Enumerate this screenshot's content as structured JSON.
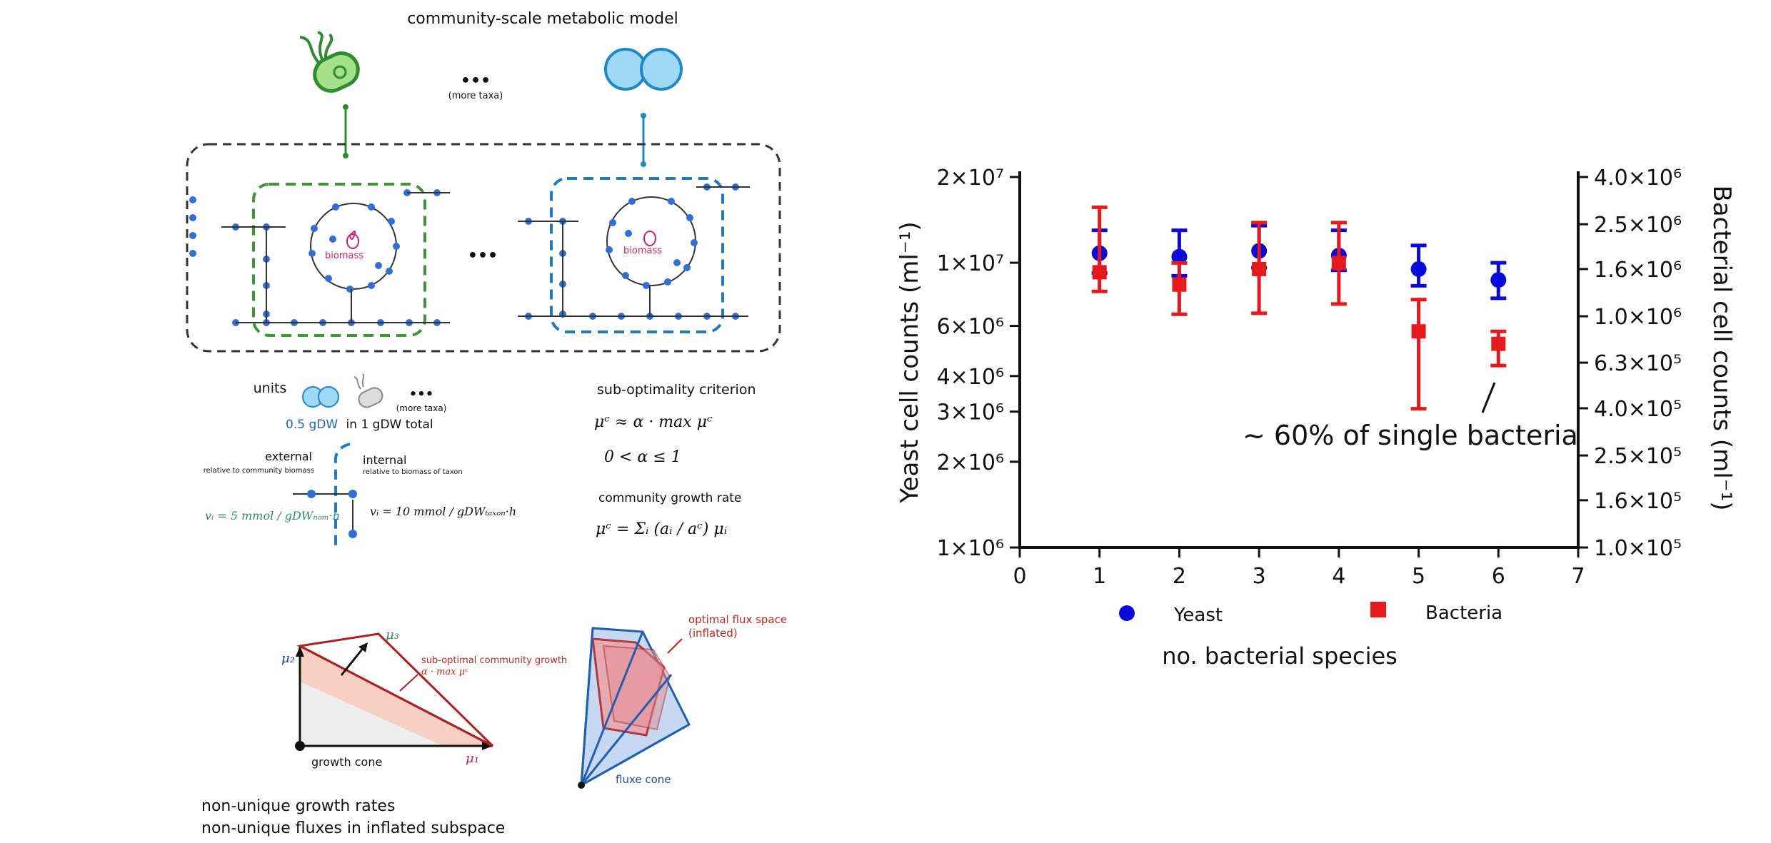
{
  "diagram": {
    "title": "community-scale metabolic model",
    "more_taxa_top": "(more taxa)",
    "ellipsis": "•••",
    "biomass_label": "biomass",
    "units_label": "units",
    "more_taxa_units": "(more taxa)",
    "gdw_value": "0.5 gDW",
    "gdw_rest": "in 1 gDW total",
    "external_label": "external",
    "external_sub": "relative to community biomass",
    "internal_label": "internal",
    "internal_sub": "relative to biomass of taxon",
    "eq_external": "vᵢ = 5 mmol / gDWₙₒₘ·h",
    "eq_internal": "vᵢ = 10 mmol / gDWₜₐₓₒₙ·h",
    "suboptimality_title": "sub-optimality criterion",
    "eq_subopt": "μᶜ ≈ α · max μᶜ",
    "eq_alpha": "0 < α ≤ 1",
    "growth_rate_title": "community growth rate",
    "eq_growth": "μᶜ = Σᵢ (aᵢ / aᶜ) μᵢ",
    "mu1": "μ₁",
    "mu2": "μ₂",
    "mu3": "μ₃",
    "subopt_growth_label": "sub-optimal community growth",
    "subopt_growth_eq": "α · max μᶜ",
    "growth_cone_label": "growth cone",
    "optimal_flux_label_1": "optimal flux space",
    "optimal_flux_label_2": "(inflated)",
    "fluxe_cone_label": "fluxe cone",
    "caption_1": "non-unique growth rates",
    "caption_2": "non-unique fluxes in inflated subspace"
  },
  "chart_data": {
    "type": "scatter",
    "xlabel": "no. bacterial species",
    "ylabel": "Yeast cell counts (ml⁻¹)",
    "y2label": "Bacterial cell counts (ml⁻¹)",
    "x_ticks": [
      "0",
      "1",
      "2",
      "3",
      "4",
      "5",
      "6",
      "7"
    ],
    "xlim": [
      0,
      7
    ],
    "y_scale": "log",
    "ylim": [
      1000000,
      20000000
    ],
    "y_ticks": [
      {
        "value": 20000000,
        "label": "2×10⁷"
      },
      {
        "value": 10000000,
        "label": "1×10⁷"
      },
      {
        "value": 6000000,
        "label": "6×10⁶"
      },
      {
        "value": 4000000,
        "label": "4×10⁶"
      },
      {
        "value": 3000000,
        "label": "3×10⁶"
      },
      {
        "value": 2000000,
        "label": "2×10⁶"
      },
      {
        "value": 1000000,
        "label": "1×10⁶"
      }
    ],
    "y2_scale": "log",
    "y2lim": [
      100000,
      4000000
    ],
    "y2_ticks": [
      {
        "value": 4000000,
        "label": "4.0×10⁶"
      },
      {
        "value": 2500000,
        "label": "2.5×10⁶"
      },
      {
        "value": 1600000,
        "label": "1.6×10⁶"
      },
      {
        "value": 1000000,
        "label": "1.0×10⁶"
      },
      {
        "value": 630000,
        "label": "6.3×10⁵"
      },
      {
        "value": 400000,
        "label": "4.0×10⁵"
      },
      {
        "value": 250000,
        "label": "2.5×10⁵"
      },
      {
        "value": 160000,
        "label": "1.6×10⁵"
      },
      {
        "value": 100000,
        "label": "1.0×10⁵"
      }
    ],
    "series": [
      {
        "name": "Yeast",
        "axis": "left",
        "marker": "circle",
        "color": "#0a0adc",
        "x": [
          1,
          2,
          3,
          4,
          5,
          6
        ],
        "values": [
          10800000,
          10500000,
          11000000,
          10600000,
          9500000,
          8700000
        ],
        "err_low": [
          9200000,
          9000000,
          9600000,
          9400000,
          8300000,
          7500000
        ],
        "err_high": [
          13000000,
          13000000,
          13500000,
          13000000,
          11500000,
          10000000
        ]
      },
      {
        "name": "Bacteria",
        "axis": "right",
        "marker": "square",
        "color": "#e61a1a",
        "x": [
          1,
          2,
          3,
          4,
          5,
          6
        ],
        "values": [
          1550000,
          1370000,
          1600000,
          1700000,
          860000,
          760000
        ],
        "err_low": [
          1280000,
          1020000,
          1030000,
          1130000,
          398000,
          612000
        ],
        "err_high": [
          2960000,
          1700000,
          2540000,
          2540000,
          1180000,
          860000
        ]
      }
    ],
    "annotation": "~ 60% of single bacteria",
    "legend": [
      {
        "label": "Yeast",
        "marker": "circle",
        "color": "#0a0adc"
      },
      {
        "label": "Bacteria",
        "marker": "square",
        "color": "#e61a1a"
      }
    ]
  }
}
